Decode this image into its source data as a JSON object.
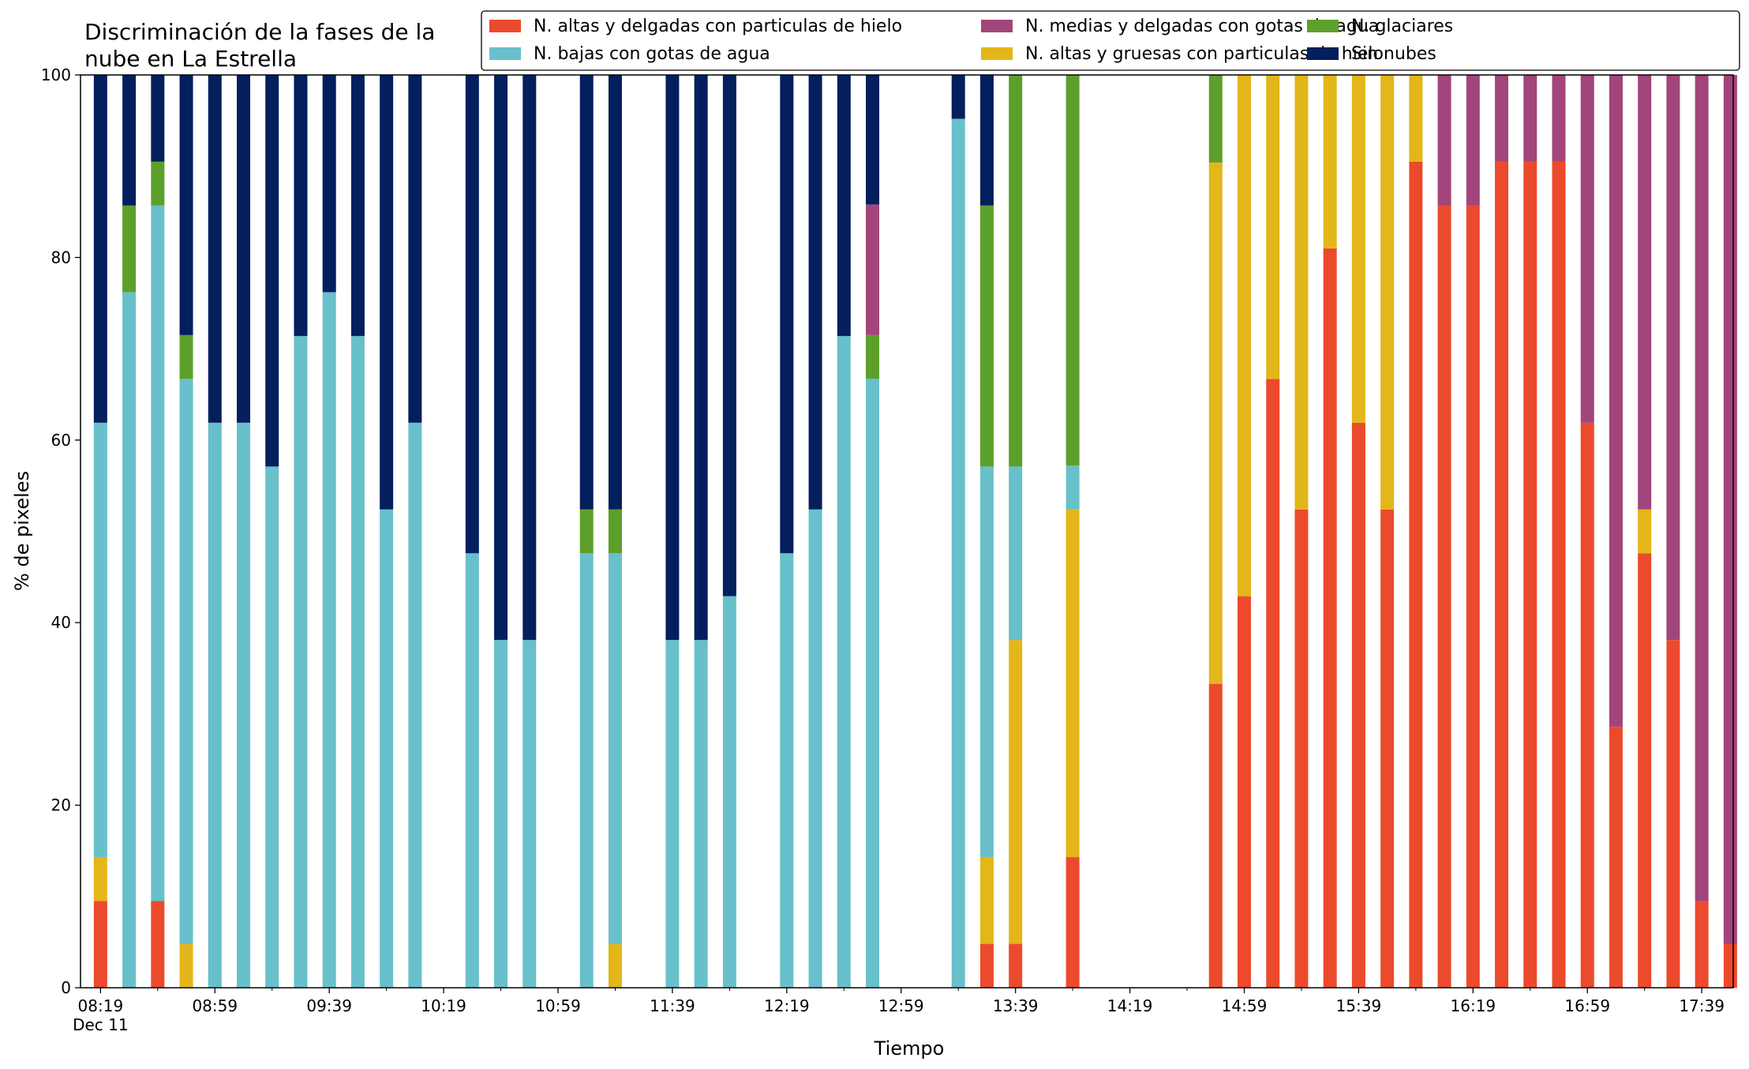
{
  "chart_data": {
    "type": "bar",
    "stacked": true,
    "title_lines": [
      "Discriminación de la fases de la",
      "nube en La Estrella"
    ],
    "xlabel": "Tiempo",
    "ylabel": "% de pixeles",
    "ylim": [
      0,
      100
    ],
    "yticks": [
      0,
      20,
      40,
      60,
      80,
      100
    ],
    "xlim_minutes": [
      -7,
      571
    ],
    "x_tick_labels": [
      {
        "time": "08:19",
        "sub": "Dec 11"
      },
      {
        "time": "08:59"
      },
      {
        "time": "09:39"
      },
      {
        "time": "10:19"
      },
      {
        "time": "10:59"
      },
      {
        "time": "11:39"
      },
      {
        "time": "12:19"
      },
      {
        "time": "12:59"
      },
      {
        "time": "13:39"
      },
      {
        "time": "14:19"
      },
      {
        "time": "14:59"
      },
      {
        "time": "15:39"
      },
      {
        "time": "16:19"
      },
      {
        "time": "16:59"
      },
      {
        "time": "17:39"
      }
    ],
    "grid": false,
    "legend_position": "top-right",
    "series": [
      {
        "name": "N. altas y delgadas con particulas de hielo",
        "color": "#ec4a2c"
      },
      {
        "name": "N. altas y gruesas con particulas de hielo",
        "color": "#e3b619"
      },
      {
        "name": "N. bajas con gotas de agua",
        "color": "#68c0ca"
      },
      {
        "name": "N. glaciares",
        "color": "#5d9f2b"
      },
      {
        "name": "N. medias y delgadas con gotas de agua",
        "color": "#a2457b"
      },
      {
        "name": "Sin nubes",
        "color": "#031f5d"
      }
    ],
    "legend_order": [
      0,
      2,
      4,
      1,
      3,
      5
    ],
    "bars": [
      {
        "time": "08:19",
        "values": [
          9.5,
          4.8,
          47.6,
          0,
          0,
          38.1
        ]
      },
      {
        "time": "08:29",
        "values": [
          0,
          0,
          76.2,
          9.5,
          0,
          14.3
        ]
      },
      {
        "time": "08:39",
        "values": [
          9.5,
          0,
          76.2,
          4.8,
          0,
          9.5
        ]
      },
      {
        "time": "08:49",
        "values": [
          0,
          4.8,
          61.9,
          4.8,
          0,
          28.5
        ]
      },
      {
        "time": "08:59",
        "values": [
          0,
          0,
          61.9,
          0,
          0,
          38.1
        ]
      },
      {
        "time": "09:09",
        "values": [
          0,
          0,
          61.9,
          0,
          0,
          38.1
        ]
      },
      {
        "time": "09:19",
        "values": [
          0,
          0,
          57.1,
          0,
          0,
          42.9
        ]
      },
      {
        "time": "09:29",
        "values": [
          0,
          0,
          71.4,
          0,
          0,
          28.6
        ]
      },
      {
        "time": "09:39",
        "values": [
          0,
          0,
          76.2,
          0,
          0,
          23.8
        ]
      },
      {
        "time": "09:49",
        "values": [
          0,
          0,
          71.4,
          0,
          0,
          28.6
        ]
      },
      {
        "time": "09:59",
        "values": [
          0,
          0,
          52.4,
          0,
          0,
          47.6
        ]
      },
      {
        "time": "10:09",
        "values": [
          0,
          0,
          61.9,
          0,
          0,
          38.1
        ]
      },
      {
        "time": "10:29",
        "values": [
          0,
          0,
          47.6,
          0,
          0,
          52.4
        ]
      },
      {
        "time": "10:39",
        "values": [
          0,
          0,
          38.1,
          0,
          0,
          61.9
        ]
      },
      {
        "time": "10:49",
        "values": [
          0,
          0,
          38.1,
          0,
          0,
          61.9
        ]
      },
      {
        "time": "11:09",
        "values": [
          0,
          0,
          47.6,
          4.8,
          0,
          47.6
        ]
      },
      {
        "time": "11:19",
        "values": [
          0,
          4.8,
          42.8,
          4.8,
          0,
          47.6
        ]
      },
      {
        "time": "11:39",
        "values": [
          0,
          0,
          38.1,
          0,
          0,
          61.9
        ]
      },
      {
        "time": "11:49",
        "values": [
          0,
          0,
          38.1,
          0,
          0,
          61.9
        ]
      },
      {
        "time": "11:59",
        "values": [
          0,
          0,
          42.9,
          0,
          0,
          57.1
        ]
      },
      {
        "time": "12:19",
        "values": [
          0,
          0,
          47.6,
          0,
          0,
          52.4
        ]
      },
      {
        "time": "12:29",
        "values": [
          0,
          0,
          52.4,
          0,
          0,
          47.6
        ]
      },
      {
        "time": "12:39",
        "values": [
          0,
          0,
          71.4,
          0,
          0,
          28.6
        ]
      },
      {
        "time": "12:49",
        "values": [
          0,
          0,
          66.7,
          4.8,
          14.3,
          14.2
        ]
      },
      {
        "time": "13:19",
        "values": [
          0,
          0,
          95.2,
          0,
          0,
          4.8
        ]
      },
      {
        "time": "13:29",
        "values": [
          4.8,
          9.5,
          42.8,
          28.6,
          0,
          14.3
        ]
      },
      {
        "time": "13:39",
        "values": [
          4.8,
          33.3,
          19.0,
          42.9,
          0,
          0
        ]
      },
      {
        "time": "13:59",
        "values": [
          14.3,
          38.1,
          4.8,
          42.8,
          0,
          0
        ]
      },
      {
        "time": "14:49",
        "values": [
          33.3,
          57.1,
          0,
          9.6,
          0,
          0
        ]
      },
      {
        "time": "14:59",
        "values": [
          42.9,
          57.1,
          0,
          0,
          0,
          0
        ]
      },
      {
        "time": "15:09",
        "values": [
          66.7,
          33.3,
          0,
          0,
          0,
          0
        ]
      },
      {
        "time": "15:19",
        "values": [
          52.4,
          47.6,
          0,
          0,
          0,
          0
        ]
      },
      {
        "time": "15:29",
        "values": [
          81.0,
          19.0,
          0,
          0,
          0,
          0
        ]
      },
      {
        "time": "15:39",
        "values": [
          61.9,
          38.1,
          0,
          0,
          0,
          0
        ]
      },
      {
        "time": "15:49",
        "values": [
          52.4,
          47.6,
          0,
          0,
          0,
          0
        ]
      },
      {
        "time": "15:59",
        "values": [
          90.5,
          9.5,
          0,
          0,
          0,
          0
        ]
      },
      {
        "time": "16:09",
        "values": [
          85.7,
          0,
          0,
          0,
          14.3,
          0
        ]
      },
      {
        "time": "16:19",
        "values": [
          85.7,
          0,
          0,
          0,
          14.3,
          0
        ]
      },
      {
        "time": "16:29",
        "values": [
          90.5,
          0,
          0,
          0,
          9.5,
          0
        ]
      },
      {
        "time": "16:39",
        "values": [
          90.5,
          0,
          0,
          0,
          9.5,
          0
        ]
      },
      {
        "time": "16:49",
        "values": [
          90.5,
          0,
          0,
          0,
          9.5,
          0
        ]
      },
      {
        "time": "16:59",
        "values": [
          61.9,
          0,
          0,
          0,
          38.1,
          0
        ]
      },
      {
        "time": "17:09",
        "values": [
          28.6,
          0,
          0,
          0,
          71.4,
          0
        ]
      },
      {
        "time": "17:19",
        "values": [
          47.6,
          4.8,
          0,
          0,
          47.6,
          0
        ]
      },
      {
        "time": "17:29",
        "values": [
          38.1,
          0,
          0,
          0,
          61.9,
          0
        ]
      },
      {
        "time": "17:39",
        "values": [
          9.5,
          0,
          0,
          0,
          90.5,
          0
        ]
      },
      {
        "time": "17:49",
        "values": [
          4.8,
          0,
          0,
          0,
          95.2,
          0
        ]
      }
    ]
  }
}
